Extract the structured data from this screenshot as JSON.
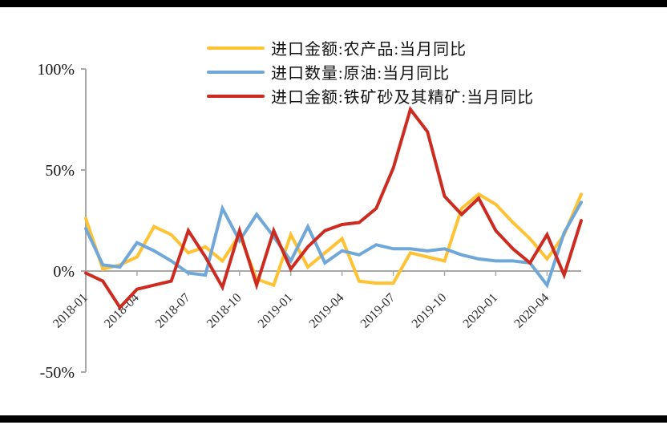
{
  "page": {
    "background": "#ffffff",
    "top_rule_color": "#000000",
    "bottom_rule_color": "#000000"
  },
  "chart_data": {
    "type": "line",
    "title": "",
    "xlabel": "",
    "ylabel": "",
    "grid": false,
    "legend_position": "top",
    "axis_color": "#a8a8a8",
    "x_label_color": "#2b2b2b",
    "y_label_color": "#141414",
    "ylim": [
      -50,
      100
    ],
    "x": [
      "2018-01",
      "2018-02",
      "2018-03",
      "2018-04",
      "2018-05",
      "2018-06",
      "2018-07",
      "2018-08",
      "2018-09",
      "2018-10",
      "2018-11",
      "2018-12",
      "2019-01",
      "2019-02",
      "2019-03",
      "2019-04",
      "2019-05",
      "2019-06",
      "2019-07",
      "2019-08",
      "2019-09",
      "2019-10",
      "2019-11",
      "2019-12",
      "2020-01",
      "2020-02",
      "2020-03",
      "2020-04",
      "2020-05",
      "2020-06"
    ],
    "x_tick_labels": [
      "2018-01",
      "2018-04",
      "2018-07",
      "2018-10",
      "2019-01",
      "2019-04",
      "2019-07",
      "2019-10",
      "2020-01",
      "2020-04"
    ],
    "x_tick_every": 3,
    "y_ticks": [
      {
        "value": 100,
        "label": "100%"
      },
      {
        "value": 50,
        "label": "50%"
      },
      {
        "value": 0,
        "label": "0%"
      },
      {
        "value": -50,
        "label": "-50%"
      }
    ],
    "series": [
      {
        "name": "进口金额:农产品:当月同比",
        "color": "#FFC233",
        "values": [
          26,
          1,
          3,
          7,
          22,
          18,
          9,
          12,
          5,
          18,
          -4,
          -7,
          18,
          2,
          9,
          16,
          -5,
          -6,
          -6,
          9,
          7,
          5,
          31,
          38,
          33,
          24,
          16,
          6,
          18,
          38
        ]
      },
      {
        "name": "进口数量:原油:当月同比",
        "color": "#6FA7D9",
        "values": [
          21,
          3,
          2,
          14,
          10,
          5,
          -1,
          -2,
          31,
          15,
          28,
          17,
          5,
          22,
          4,
          10,
          8,
          13,
          11,
          11,
          10,
          11,
          8,
          6,
          5,
          5,
          4,
          -7,
          19,
          34
        ]
      },
      {
        "name": "进口金额:铁矿砂及其精矿:当月同比",
        "color": "#CD2A20",
        "values": [
          -1,
          -5,
          -18,
          -9,
          -7,
          -5,
          20,
          7,
          -8,
          20,
          -7,
          20,
          1,
          12,
          20,
          23,
          24,
          31,
          51,
          80,
          69,
          37,
          28,
          36,
          20,
          11,
          4,
          18,
          -2,
          25
        ]
      }
    ]
  }
}
